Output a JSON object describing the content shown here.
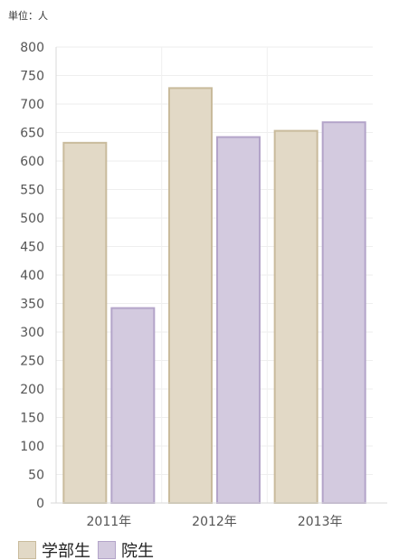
{
  "unit_label": "単位：人",
  "chart_data": {
    "type": "bar",
    "categories": [
      "2011年",
      "2012年",
      "2013年"
    ],
    "series": [
      {
        "name": "学部生",
        "values": [
          632,
          728,
          653
        ],
        "fill": "#e2d9c6",
        "stroke": "#c9bb9c"
      },
      {
        "name": "院生",
        "values": [
          342,
          642,
          668
        ],
        "fill": "#d3cadf",
        "stroke": "#b3a4c9"
      }
    ],
    "ylim": [
      0,
      800
    ],
    "yticks": [
      "0",
      "50",
      "100",
      "150",
      "200",
      "250",
      "300",
      "350",
      "400",
      "450",
      "500",
      "550",
      "600",
      "650",
      "700",
      "750",
      "800"
    ],
    "grid": true,
    "legend_position": "bottom-left",
    "title": "",
    "xlabel": "",
    "ylabel": ""
  }
}
